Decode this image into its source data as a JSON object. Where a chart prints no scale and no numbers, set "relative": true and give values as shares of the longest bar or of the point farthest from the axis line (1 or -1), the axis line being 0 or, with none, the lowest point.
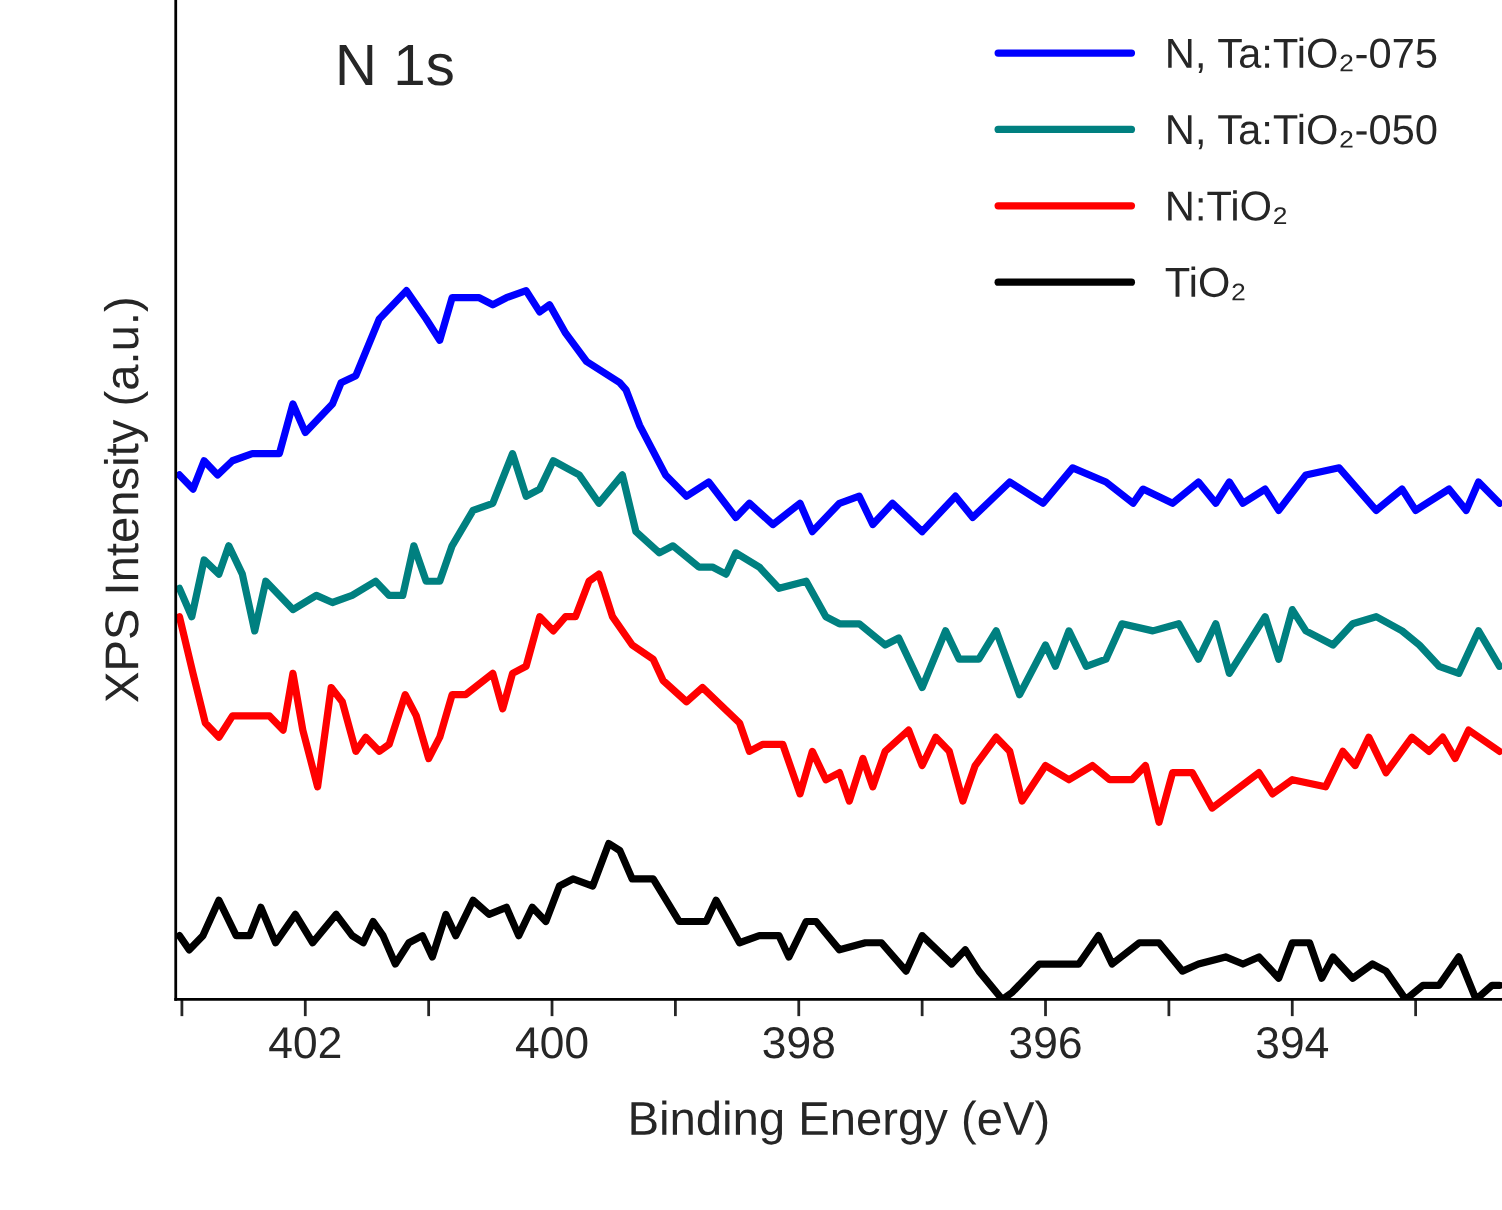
{
  "chart_data": {
    "type": "line",
    "title": "N 1s",
    "xlabel": "Binding Energy (eV)",
    "ylabel": "XPS Intensity (a.u.)",
    "relative": true,
    "xlim": [
      403.05,
      392.3
    ],
    "xticks": [
      {
        "value": 403,
        "label": null
      },
      402,
      {
        "value": 401,
        "label": null
      },
      400,
      {
        "value": 399,
        "label": null
      },
      398,
      {
        "value": 397,
        "label": null
      },
      396,
      {
        "value": 395,
        "label": null
      },
      394,
      {
        "value": 393,
        "label": null
      }
    ],
    "legend": "top right",
    "grid": false,
    "series": [
      {
        "name": "N, Ta:TiO₂-075",
        "color": "#0000ff",
        "x": [
          403.02,
          402.91,
          402.82,
          402.71,
          402.59,
          402.43,
          402.29,
          402.21,
          402.1,
          402.0,
          401.78,
          401.71,
          401.59,
          401.4,
          401.18,
          401.02,
          400.91,
          400.81,
          400.7,
          400.59,
          400.48,
          400.37,
          400.21,
          400.1,
          400.02,
          399.89,
          399.72,
          399.45,
          399.4,
          399.29,
          399.08,
          398.91,
          398.73,
          398.51,
          398.4,
          398.21,
          397.99,
          397.89,
          397.67,
          397.51,
          397.4,
          397.24,
          397.0,
          396.73,
          396.59,
          396.29,
          396.02,
          395.78,
          395.51,
          395.29,
          395.21,
          394.97,
          394.76,
          394.62,
          394.51,
          394.4,
          394.22,
          394.11,
          393.89,
          393.62,
          393.32,
          393.11,
          393.0,
          392.73,
          392.59,
          392.49,
          392.32
        ],
        "values": [
          0.74,
          0.72,
          0.76,
          0.74,
          0.76,
          0.77,
          0.77,
          0.77,
          0.84,
          0.8,
          0.84,
          0.87,
          0.88,
          0.96,
          1.0,
          0.96,
          0.93,
          0.99,
          0.99,
          0.99,
          0.98,
          0.99,
          1.0,
          0.97,
          0.98,
          0.94,
          0.9,
          0.87,
          0.86,
          0.81,
          0.74,
          0.71,
          0.73,
          0.68,
          0.7,
          0.67,
          0.7,
          0.66,
          0.7,
          0.71,
          0.67,
          0.7,
          0.66,
          0.71,
          0.68,
          0.73,
          0.7,
          0.75,
          0.73,
          0.7,
          0.72,
          0.7,
          0.73,
          0.7,
          0.73,
          0.7,
          0.72,
          0.69,
          0.74,
          0.75,
          0.69,
          0.72,
          0.69,
          0.72,
          0.69,
          0.73,
          0.7
        ]
      },
      {
        "name": "N, Ta:TiO₂-050",
        "color": "#008080",
        "x": [
          403.02,
          402.92,
          402.82,
          402.7,
          402.62,
          402.51,
          402.41,
          402.32,
          402.1,
          401.91,
          401.78,
          401.62,
          401.43,
          401.32,
          401.21,
          401.12,
          401.02,
          400.91,
          400.81,
          400.64,
          400.48,
          400.32,
          400.21,
          400.1,
          399.99,
          399.78,
          399.62,
          399.43,
          399.32,
          399.13,
          399.02,
          398.81,
          398.7,
          398.59,
          398.51,
          398.32,
          398.16,
          397.94,
          397.78,
          397.67,
          397.51,
          397.3,
          397.19,
          397.0,
          396.81,
          396.7,
          396.54,
          396.4,
          396.21,
          396.0,
          395.92,
          395.81,
          395.67,
          395.51,
          395.38,
          395.13,
          394.92,
          394.76,
          394.62,
          394.51,
          394.22,
          394.11,
          394.0,
          393.89,
          393.67,
          393.51,
          393.32,
          393.11,
          392.97,
          392.81,
          392.65,
          392.49,
          392.32
        ],
        "values": [
          0.58,
          0.54,
          0.62,
          0.6,
          0.64,
          0.6,
          0.52,
          0.59,
          0.55,
          0.57,
          0.56,
          0.57,
          0.59,
          0.57,
          0.57,
          0.64,
          0.59,
          0.59,
          0.64,
          0.69,
          0.7,
          0.77,
          0.71,
          0.72,
          0.76,
          0.74,
          0.7,
          0.74,
          0.66,
          0.63,
          0.64,
          0.61,
          0.61,
          0.6,
          0.63,
          0.61,
          0.58,
          0.59,
          0.54,
          0.53,
          0.53,
          0.5,
          0.51,
          0.44,
          0.52,
          0.48,
          0.48,
          0.52,
          0.43,
          0.5,
          0.47,
          0.52,
          0.47,
          0.48,
          0.53,
          0.52,
          0.53,
          0.48,
          0.53,
          0.46,
          0.54,
          0.48,
          0.55,
          0.52,
          0.5,
          0.53,
          0.54,
          0.52,
          0.5,
          0.47,
          0.46,
          0.52,
          0.47
        ]
      },
      {
        "name": "N:TiO₂",
        "color": "#ff0000",
        "x": [
          403.02,
          402.91,
          402.81,
          402.7,
          402.59,
          402.37,
          402.29,
          402.18,
          402.1,
          402.02,
          401.9,
          401.79,
          401.7,
          401.59,
          401.51,
          401.4,
          401.32,
          401.19,
          401.1,
          401.0,
          400.91,
          400.81,
          400.7,
          400.48,
          400.4,
          400.32,
          400.21,
          400.1,
          399.99,
          399.89,
          399.81,
          399.7,
          399.62,
          399.51,
          399.35,
          399.18,
          399.1,
          398.91,
          398.78,
          398.48,
          398.4,
          398.29,
          398.13,
          397.99,
          397.89,
          397.78,
          397.67,
          397.59,
          397.48,
          397.4,
          397.3,
          397.11,
          397.0,
          396.89,
          396.78,
          396.67,
          396.57,
          396.4,
          396.29,
          396.19,
          396.0,
          395.81,
          395.62,
          395.48,
          395.3,
          395.19,
          395.08,
          394.97,
          394.81,
          394.65,
          394.27,
          394.16,
          394.0,
          393.73,
          393.59,
          393.49,
          393.38,
          393.24,
          393.03,
          392.89,
          392.78,
          392.68,
          392.57,
          392.32
        ],
        "values": [
          0.54,
          0.46,
          0.39,
          0.37,
          0.4,
          0.4,
          0.4,
          0.38,
          0.46,
          0.38,
          0.3,
          0.44,
          0.42,
          0.35,
          0.37,
          0.35,
          0.36,
          0.43,
          0.4,
          0.34,
          0.37,
          0.43,
          0.43,
          0.46,
          0.41,
          0.46,
          0.47,
          0.54,
          0.52,
          0.54,
          0.54,
          0.59,
          0.6,
          0.54,
          0.5,
          0.48,
          0.45,
          0.42,
          0.44,
          0.39,
          0.35,
          0.36,
          0.36,
          0.29,
          0.35,
          0.31,
          0.32,
          0.28,
          0.34,
          0.3,
          0.35,
          0.38,
          0.33,
          0.37,
          0.35,
          0.28,
          0.33,
          0.37,
          0.35,
          0.28,
          0.33,
          0.31,
          0.33,
          0.31,
          0.31,
          0.33,
          0.25,
          0.32,
          0.32,
          0.27,
          0.32,
          0.29,
          0.31,
          0.3,
          0.35,
          0.33,
          0.37,
          0.32,
          0.37,
          0.35,
          0.37,
          0.34,
          0.38,
          0.35
        ]
      },
      {
        "name": "TiO₂",
        "color": "#000000",
        "x": [
          403.02,
          402.94,
          402.83,
          402.7,
          402.56,
          402.45,
          402.36,
          402.24,
          402.08,
          401.94,
          401.75,
          401.62,
          401.53,
          401.45,
          401.37,
          401.27,
          401.16,
          401.05,
          400.97,
          400.86,
          400.78,
          400.64,
          400.51,
          400.37,
          400.27,
          400.16,
          400.05,
          399.94,
          399.83,
          399.67,
          399.54,
          399.45,
          399.35,
          399.18,
          398.97,
          398.86,
          398.75,
          398.67,
          398.48,
          398.32,
          398.16,
          398.08,
          397.94,
          397.86,
          397.67,
          397.46,
          397.33,
          397.13,
          397.0,
          396.76,
          396.65,
          396.54,
          396.35,
          396.27,
          396.05,
          395.84,
          395.73,
          395.57,
          395.46,
          395.24,
          395.08,
          394.89,
          394.76,
          394.54,
          394.4,
          394.27,
          394.11,
          394.0,
          393.86,
          393.76,
          393.67,
          393.51,
          393.35,
          393.24,
          393.08,
          392.94,
          392.81,
          392.65,
          392.51,
          392.38,
          392.32
        ],
        "values": [
          0.09,
          0.07,
          0.09,
          0.14,
          0.09,
          0.09,
          0.13,
          0.08,
          0.12,
          0.08,
          0.12,
          0.09,
          0.08,
          0.11,
          0.09,
          0.05,
          0.08,
          0.09,
          0.06,
          0.12,
          0.09,
          0.14,
          0.12,
          0.13,
          0.09,
          0.13,
          0.11,
          0.16,
          0.17,
          0.16,
          0.22,
          0.21,
          0.17,
          0.17,
          0.11,
          0.11,
          0.11,
          0.14,
          0.08,
          0.09,
          0.09,
          0.06,
          0.11,
          0.11,
          0.07,
          0.08,
          0.08,
          0.04,
          0.09,
          0.05,
          0.07,
          0.04,
          0.0,
          0.01,
          0.05,
          0.05,
          0.05,
          0.09,
          0.05,
          0.08,
          0.08,
          0.04,
          0.05,
          0.06,
          0.05,
          0.06,
          0.03,
          0.08,
          0.08,
          0.03,
          0.06,
          0.03,
          0.05,
          0.04,
          0.0,
          0.02,
          0.02,
          0.06,
          0.0,
          0.02,
          0.02
        ]
      }
    ]
  }
}
